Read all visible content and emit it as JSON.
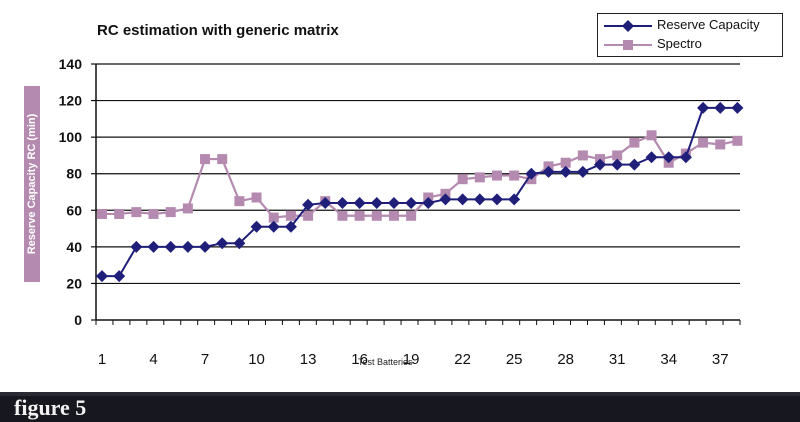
{
  "chart_data": {
    "type": "line",
    "title": "RC estimation with generic matrix",
    "xlabel": "Test Batteries",
    "ylabel": "Reserve Capacity RC (min)",
    "x": [
      1,
      2,
      3,
      4,
      5,
      6,
      7,
      8,
      9,
      10,
      11,
      12,
      13,
      14,
      15,
      16,
      17,
      18,
      19,
      20,
      21,
      22,
      23,
      24,
      25,
      26,
      27,
      28,
      29,
      30,
      31,
      32,
      33,
      34,
      35,
      36,
      37,
      38
    ],
    "x_tick_labels": [
      "1",
      "4",
      "7",
      "10",
      "13",
      "16",
      "19",
      "22",
      "25",
      "28",
      "31",
      "34",
      "37"
    ],
    "x_tick_values": [
      1,
      4,
      7,
      10,
      13,
      16,
      19,
      22,
      25,
      28,
      31,
      34,
      37
    ],
    "ylim": [
      0,
      140
    ],
    "y_ticks": [
      0,
      20,
      40,
      60,
      80,
      100,
      120,
      140
    ],
    "grid": true,
    "legend_position": "top-right",
    "series": [
      {
        "name": "Reserve Capacity",
        "color": "#1f1f7a",
        "marker": "diamond",
        "values": [
          24,
          24,
          40,
          40,
          40,
          40,
          40,
          42,
          42,
          51,
          51,
          51,
          63,
          64,
          64,
          64,
          64,
          64,
          64,
          64,
          66,
          66,
          66,
          66,
          66,
          80,
          81,
          81,
          81,
          85,
          85,
          85,
          89,
          89,
          89,
          116,
          116,
          116
        ]
      },
      {
        "name": "Spectro",
        "color": "#b58ab0",
        "marker": "square",
        "values": [
          58,
          58,
          59,
          58,
          59,
          61,
          88,
          88,
          65,
          67,
          56,
          57,
          57,
          65,
          57,
          57,
          57,
          57,
          57,
          67,
          69,
          77,
          78,
          79,
          79,
          77,
          84,
          86,
          90,
          88,
          90,
          97,
          101,
          86,
          91,
          97,
          96,
          98
        ]
      }
    ]
  },
  "footer": {
    "caption": "figure 5"
  }
}
